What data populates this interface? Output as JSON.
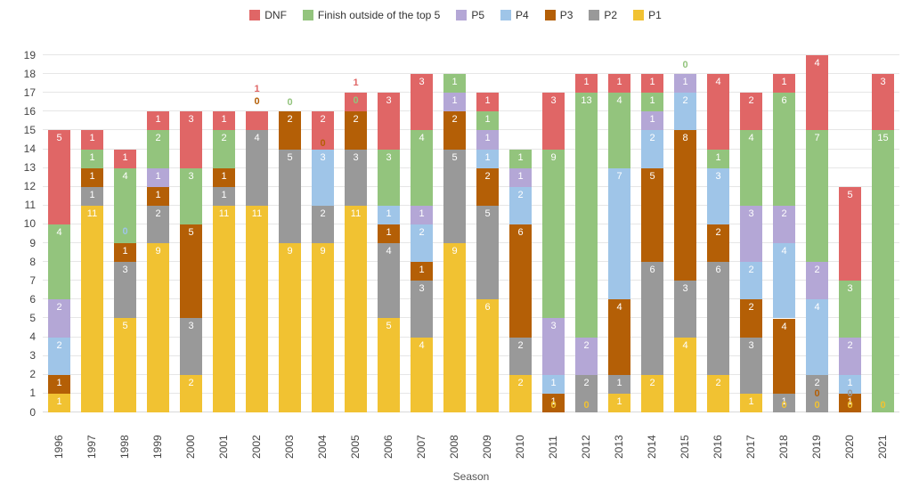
{
  "axis": {
    "x_title": "Season"
  },
  "chart_data": {
    "type": "bar",
    "stacked": true,
    "title": "",
    "xlabel": "Season",
    "ylabel": "",
    "ylim": [
      0,
      19
    ],
    "grid": true,
    "legend_position": "top",
    "categories": [
      "1996",
      "1997",
      "1998",
      "1999",
      "2000",
      "2001",
      "2002",
      "2003",
      "2004",
      "2005",
      "2006",
      "2007",
      "2008",
      "2009",
      "2010",
      "2011",
      "2012",
      "2013",
      "2014",
      "2015",
      "2016",
      "2017",
      "2018",
      "2019",
      "2020",
      "2021"
    ],
    "series": [
      {
        "key": "P1",
        "label": "P1",
        "color": "#f1c232",
        "values": [
          1,
          11,
          5,
          9,
          2,
          11,
          11,
          9,
          9,
          11,
          5,
          4,
          9,
          6,
          2,
          0,
          0,
          1,
          2,
          4,
          2,
          1,
          0,
          0,
          0,
          0
        ]
      },
      {
        "key": "P2",
        "label": "P2",
        "color": "#999999",
        "values": [
          0,
          1,
          3,
          2,
          3,
          1,
          4,
          5,
          2,
          3,
          4,
          3,
          5,
          5,
          2,
          0,
          2,
          1,
          6,
          3,
          6,
          3,
          1,
          2,
          0,
          0
        ]
      },
      {
        "key": "P3",
        "label": "P3",
        "color": "#b45f06",
        "values": [
          1,
          1,
          1,
          1,
          5,
          1,
          0,
          2,
          0,
          2,
          1,
          1,
          2,
          2,
          6,
          1,
          0,
          4,
          5,
          8,
          2,
          2,
          4,
          0,
          1,
          0
        ]
      },
      {
        "key": "P4",
        "label": "P4",
        "color": "#9fc5e8",
        "values": [
          2,
          0,
          0,
          0,
          0,
          0,
          0,
          0,
          3,
          0,
          1,
          2,
          0,
          1,
          2,
          1,
          0,
          7,
          2,
          2,
          3,
          2,
          4,
          4,
          1,
          0
        ]
      },
      {
        "key": "P5",
        "label": "P5",
        "color": "#b4a7d6",
        "values": [
          2,
          0,
          0,
          1,
          0,
          0,
          0,
          0,
          0,
          0,
          0,
          1,
          1,
          1,
          1,
          3,
          2,
          0,
          1,
          1,
          0,
          3,
          2,
          2,
          2,
          0
        ]
      },
      {
        "key": "OUT",
        "label": "Finish outside of the top 5",
        "color": "#93c47d",
        "values": [
          4,
          1,
          4,
          2,
          3,
          2,
          0,
          0,
          0,
          0,
          3,
          4,
          1,
          1,
          1,
          9,
          13,
          4,
          1,
          0,
          1,
          4,
          6,
          7,
          3,
          15
        ]
      },
      {
        "key": "DNF",
        "label": "DNF",
        "color": "#e06666",
        "values": [
          5,
          1,
          1,
          1,
          3,
          1,
          1,
          0,
          2,
          1,
          3,
          3,
          0,
          1,
          0,
          3,
          1,
          1,
          1,
          0,
          4,
          2,
          1,
          4,
          5,
          3
        ]
      }
    ],
    "legend_order": [
      "DNF",
      "OUT",
      "P5",
      "P4",
      "P3",
      "P2",
      "P1"
    ],
    "annotations": [
      {
        "year": "1998",
        "series": "P4",
        "text": "0",
        "u": 9.6
      },
      {
        "year": "2002",
        "series": "DNF",
        "text": "1",
        "u": 17.2,
        "replaces_inside": true
      },
      {
        "year": "2002",
        "series": "P3",
        "text": "0",
        "u": 16.55
      },
      {
        "year": "2003",
        "series": "OUT",
        "text": "0",
        "u": 16.5
      },
      {
        "year": "2004",
        "series": "P3",
        "text": "0",
        "u": 14.3
      },
      {
        "year": "2005",
        "series": "DNF",
        "text": "1",
        "u": 17.55,
        "replaces_inside": true
      },
      {
        "year": "2005",
        "series": "OUT",
        "text": "0",
        "u": 16.6
      },
      {
        "year": "2011",
        "series": "P1",
        "text": "0",
        "u": 0.4
      },
      {
        "year": "2012",
        "series": "P1",
        "text": "0",
        "u": 0.4
      },
      {
        "year": "2015",
        "series": "OUT",
        "text": "0",
        "u": 18.5
      },
      {
        "year": "2018",
        "series": "P1",
        "text": "0",
        "u": 0.4
      },
      {
        "year": "2019",
        "series": "P1",
        "text": "0",
        "u": 0.4
      },
      {
        "year": "2019",
        "series": "P3",
        "text": "0",
        "u": 1.0
      },
      {
        "year": "2020",
        "series": "P1",
        "text": "0",
        "u": 0.4
      },
      {
        "year": "2020",
        "series": "P2",
        "text": "0",
        "u": 1.0
      },
      {
        "year": "2021",
        "series": "P1",
        "text": "0",
        "u": 0.4
      }
    ]
  }
}
